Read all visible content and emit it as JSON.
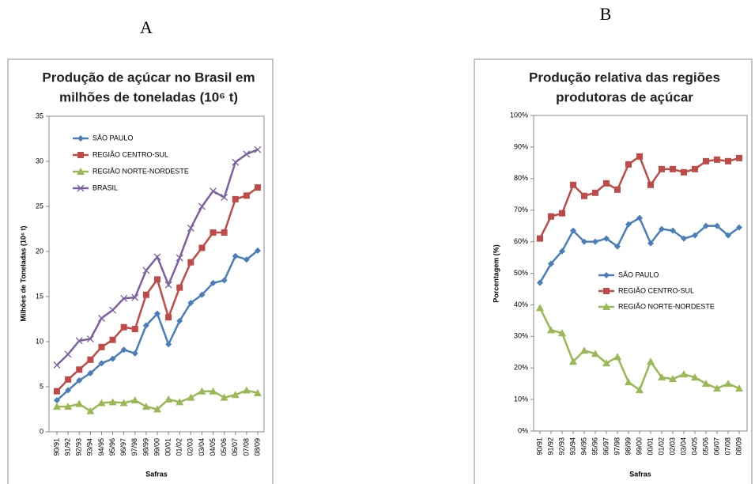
{
  "chart_data": [
    {
      "type": "line",
      "label": "A",
      "title": [
        "Produção de açúcar no Brasil em",
        "milhões de toneladas (10⁶ t)"
      ],
      "y_label": "Milhões de Toneladas (10⁶ t)",
      "x_label": "Safras",
      "categories": [
        "90/91",
        "91/92",
        "92/93",
        "93/94",
        "94/95",
        "95/96",
        "96/97",
        "97/98",
        "98/99",
        "99/00",
        "00/01",
        "01/02",
        "02/03",
        "03/04",
        "04/05",
        "05/06",
        "06/07",
        "07/08",
        "08/09"
      ],
      "ylim": [
        0,
        35
      ],
      "yticks": [
        0,
        5,
        10,
        15,
        20,
        25,
        30,
        35
      ],
      "grid": false,
      "series": [
        {
          "name": "SÃO PAULO",
          "color": "#4a7ebb",
          "marker": "diamond",
          "values": [
            3.5,
            4.6,
            5.7,
            6.5,
            7.6,
            8.1,
            9.1,
            8.7,
            11.8,
            13.1,
            9.7,
            12.3,
            14.3,
            15.2,
            16.5,
            16.8,
            19.5,
            19.1,
            20.1
          ]
        },
        {
          "name": "REGIÃO CENTRO-SUL",
          "color": "#be4b48",
          "marker": "square",
          "values": [
            4.5,
            5.8,
            6.9,
            8.0,
            9.4,
            10.2,
            11.6,
            11.4,
            15.2,
            16.9,
            12.7,
            16.0,
            18.8,
            20.4,
            22.1,
            22.1,
            25.8,
            26.2,
            27.1
          ]
        },
        {
          "name": "REGIÃO NORTE-NORDESTE",
          "color": "#98b954",
          "marker": "triangle",
          "values": [
            2.8,
            2.8,
            3.1,
            2.3,
            3.2,
            3.3,
            3.2,
            3.5,
            2.8,
            2.5,
            3.6,
            3.3,
            3.8,
            4.5,
            4.5,
            3.8,
            4.1,
            4.6,
            4.3
          ]
        },
        {
          "name": "BRASIL",
          "color": "#7d60a0",
          "marker": "x",
          "values": [
            7.4,
            8.6,
            10.1,
            10.3,
            12.6,
            13.5,
            14.8,
            14.9,
            17.9,
            19.4,
            16.3,
            19.3,
            22.6,
            25.0,
            26.7,
            26.0,
            29.9,
            30.8,
            31.3
          ]
        }
      ]
    },
    {
      "type": "line",
      "label": "B",
      "title": [
        "Produção relativa das regiões",
        "produtoras de açúcar"
      ],
      "y_label": "Porcentagem (%)",
      "x_label": "Safras",
      "categories": [
        "90/91",
        "91/92",
        "92/93",
        "93/94",
        "94/95",
        "95/96",
        "96/97",
        "97/98",
        "98/99",
        "99/00",
        "00/01",
        "01/02",
        "02/03",
        "03/04",
        "04/05",
        "05/06",
        "06/07",
        "07/08",
        "08/09"
      ],
      "ylim": [
        0,
        100
      ],
      "yticks": [
        {
          "value": 0,
          "label": "0%"
        },
        {
          "value": 10,
          "label": "10%"
        },
        {
          "value": 20,
          "label": "20%"
        },
        {
          "value": 30,
          "label": "30%"
        },
        {
          "value": 40,
          "label": "40%"
        },
        {
          "value": 50,
          "label": "50%"
        },
        {
          "value": 60,
          "label": "60%"
        },
        {
          "value": 70,
          "label": "70%"
        },
        {
          "value": 80,
          "label": "80%"
        },
        {
          "value": 90,
          "label": "90%"
        },
        {
          "value": 100,
          "label": "100%"
        }
      ],
      "grid": false,
      "series": [
        {
          "name": "SÃO PAULO",
          "color": "#4a7ebb",
          "marker": "diamond",
          "values": [
            47,
            53,
            57,
            63.5,
            60,
            60,
            61,
            58.5,
            65.5,
            67.5,
            59.5,
            64,
            63.5,
            61,
            62,
            65,
            65,
            62,
            64.5
          ]
        },
        {
          "name": "REGIÃO CENTRO-SUL",
          "color": "#be4b48",
          "marker": "square",
          "values": [
            61,
            68,
            69,
            78,
            74.5,
            75.5,
            78.5,
            76.5,
            84.5,
            87,
            78,
            83,
            83,
            82,
            83,
            85.5,
            86,
            85.5,
            86.5
          ]
        },
        {
          "name": "REGIÃO NORTE-NORDESTE",
          "color": "#98b954",
          "marker": "triangle",
          "values": [
            39,
            32,
            31,
            22,
            25.5,
            24.5,
            21.5,
            23.5,
            15.5,
            13,
            22,
            17,
            16.5,
            18,
            17,
            15,
            13.5,
            15,
            13.5
          ]
        }
      ]
    }
  ]
}
